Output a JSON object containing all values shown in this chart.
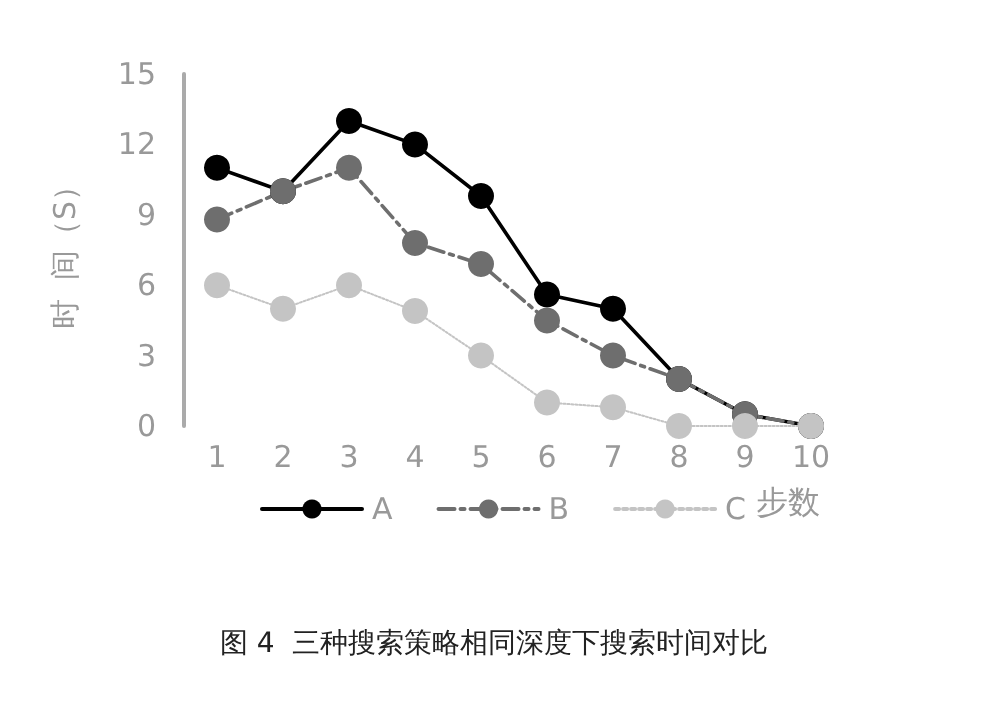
{
  "chart_data": {
    "type": "line",
    "title": "图 4  三种搜索策略相同深度下搜索时间对比",
    "xlabel": "步数",
    "ylabel": "时  间（S）",
    "categories": [
      "1",
      "2",
      "3",
      "4",
      "5",
      "6",
      "7",
      "8",
      "9",
      "10"
    ],
    "series": [
      {
        "name": "A",
        "color": "#000000",
        "line_style": "solid",
        "values": [
          11,
          10,
          13,
          12,
          9.8,
          5.6,
          5,
          2,
          0.5,
          0
        ]
      },
      {
        "name": "B",
        "color": "#6e6e6e",
        "line_style": "dashed",
        "values": [
          8.8,
          10,
          11,
          7.8,
          6.9,
          4.5,
          3,
          2,
          0.5,
          0
        ]
      },
      {
        "name": "C",
        "color": "#c4c4c4",
        "line_style": "dotted",
        "values": [
          6,
          5,
          6,
          4.9,
          3,
          1,
          0.8,
          0,
          0,
          0
        ]
      }
    ],
    "ylim": [
      0,
      15
    ],
    "yticks": [
      0,
      3,
      6,
      9,
      12,
      15
    ],
    "grid": false,
    "legend": "bottom",
    "marker": "circle"
  }
}
